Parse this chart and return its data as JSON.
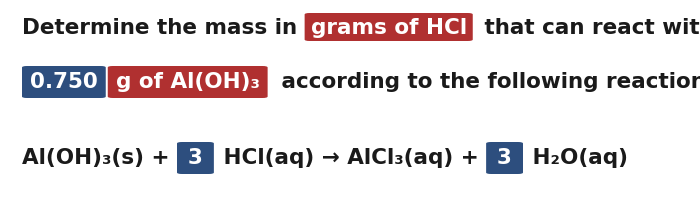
{
  "bg_color": "#ffffff",
  "dark_blue": "#2d4e7e",
  "dark_red": "#b03030",
  "line1_text_before": "Determine the mass in ",
  "line1_highlight": "grams of HCl",
  "line1_text_after": " that can react with",
  "line2_box1_text": "0.750",
  "line2_box2_text": "g of Al(OH)₃",
  "line2_text_after": " according to the following reaction",
  "line3_part1": "Al(OH)₃(s) + ",
  "line3_box1": "3",
  "line3_part2": " HCl(aq) → AlCl₃(aq) + ",
  "line3_box2": "3",
  "line3_part3": " H₂O(aq)",
  "font_size_main": 15.5,
  "text_color": "#1a1a1a",
  "fig_width": 7.0,
  "fig_height": 2.08,
  "dpi": 100
}
